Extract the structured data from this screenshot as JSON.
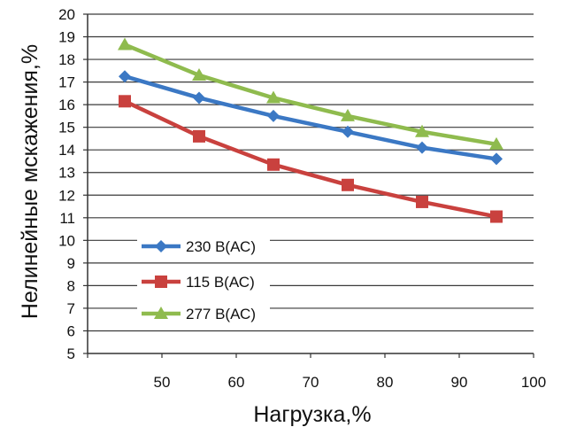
{
  "chart_data": {
    "type": "line",
    "title": "",
    "xlabel": "Нагрузка,%",
    "ylabel": "Нелинейные мскажения,%",
    "xlim": [
      40,
      100
    ],
    "ylim": [
      5,
      20
    ],
    "xticks": [
      "50",
      "60",
      "70",
      "80",
      "90",
      "100"
    ],
    "yticks": [
      "5",
      "6",
      "7",
      "8",
      "9",
      "10",
      "11",
      "12",
      "13",
      "14",
      "15",
      "16",
      "17",
      "18",
      "19",
      "20"
    ],
    "grid": true,
    "legend_position": "bottom-left inside",
    "x": [
      45,
      55,
      65,
      75,
      85,
      95
    ],
    "series": [
      {
        "name": "230 В(АС)",
        "color": "#3b78c4",
        "marker": "diamond",
        "values": [
          17.25,
          16.3,
          15.5,
          14.8,
          14.1,
          13.6
        ]
      },
      {
        "name": "115 В(АС)",
        "color": "#c9413e",
        "marker": "square",
        "values": [
          16.15,
          14.6,
          13.35,
          12.45,
          11.7,
          11.05
        ]
      },
      {
        "name": "277 В(АС)",
        "color": "#8fbb4e",
        "marker": "triangle",
        "values": [
          18.65,
          17.3,
          16.3,
          15.5,
          14.8,
          14.25
        ]
      }
    ]
  }
}
